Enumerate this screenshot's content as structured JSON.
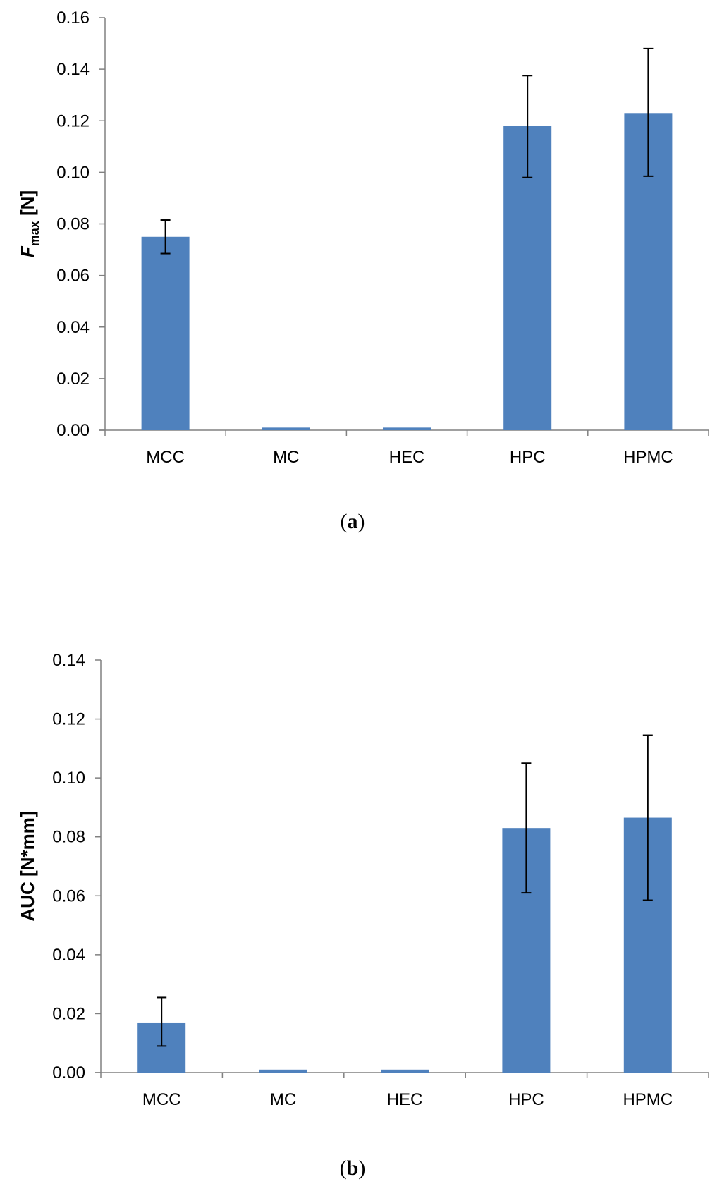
{
  "chart_data": [
    {
      "type": "bar",
      "panel_label": "a",
      "categories": [
        "MCC",
        "MC",
        "HEC",
        "HPC",
        "HPMC"
      ],
      "values": [
        0.075,
        0.001,
        0.001,
        0.118,
        0.123
      ],
      "error_low": [
        0.0685,
        null,
        null,
        0.098,
        0.0985
      ],
      "error_high": [
        0.0815,
        null,
        null,
        0.1375,
        0.148
      ],
      "ylabel_main": "F",
      "ylabel_sub": "max",
      "ylabel_unit": " [N]",
      "ylim": [
        0,
        0.16
      ],
      "yticks": [
        0.0,
        0.02,
        0.04,
        0.06,
        0.08,
        0.1,
        0.12,
        0.14,
        0.16
      ],
      "ytick_labels": [
        "0.00",
        "0.02",
        "0.04",
        "0.06",
        "0.08",
        "0.10",
        "0.12",
        "0.14",
        "0.16"
      ],
      "bar_color": "#4F81BD"
    },
    {
      "type": "bar",
      "panel_label": "b",
      "categories": [
        "MCC",
        "MC",
        "HEC",
        "HPC",
        "HPMC"
      ],
      "values": [
        0.017,
        0.001,
        0.001,
        0.083,
        0.0865
      ],
      "error_low": [
        0.009,
        null,
        null,
        0.061,
        0.0585
      ],
      "error_high": [
        0.0255,
        null,
        null,
        0.105,
        0.1145
      ],
      "ylabel": "AUC [N*mm]",
      "ylim": [
        0,
        0.14
      ],
      "yticks": [
        0.0,
        0.02,
        0.04,
        0.06,
        0.08,
        0.1,
        0.12,
        0.14
      ],
      "ytick_labels": [
        "0.00",
        "0.02",
        "0.04",
        "0.06",
        "0.08",
        "0.10",
        "0.12",
        "0.14"
      ],
      "bar_color": "#4F81BD"
    }
  ]
}
